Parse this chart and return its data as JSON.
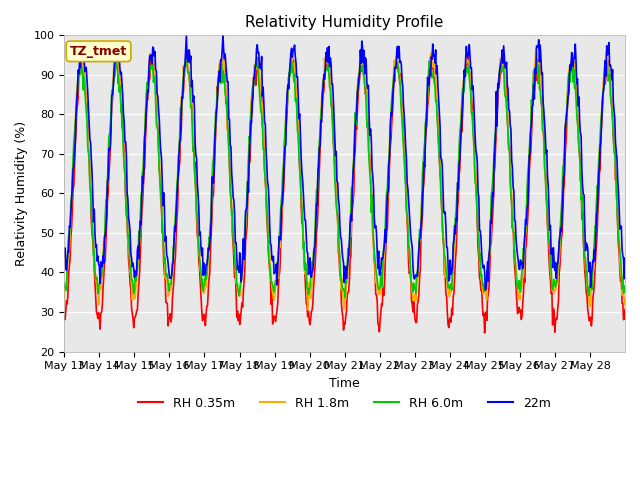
{
  "title": "Relativity Humidity Profile",
  "xlabel": "Time",
  "ylabel": "Relativity Humidity (%)",
  "ylim": [
    20,
    100
  ],
  "bg_color": "#e8e8e8",
  "annotation_text": "TZ_tmet",
  "annotation_bg": "#ffffcc",
  "annotation_border": "#ccaa00",
  "annotation_text_color": "#880000",
  "legend_labels": [
    "RH 0.35m",
    "RH 1.8m",
    "RH 6.0m",
    "22m"
  ],
  "line_colors": [
    "#ff0000",
    "#ffaa00",
    "#00cc00",
    "#0000ff"
  ],
  "x_tick_labels": [
    "May 13",
    "May 14",
    "May 15",
    "May 16",
    "May 17",
    "May 18",
    "May 19",
    "May 20",
    "May 21",
    "May 22",
    "May 23",
    "May 24",
    "May 25",
    "May 26",
    "May 27",
    "May 28"
  ],
  "n_days": 16,
  "points_per_day": 48
}
